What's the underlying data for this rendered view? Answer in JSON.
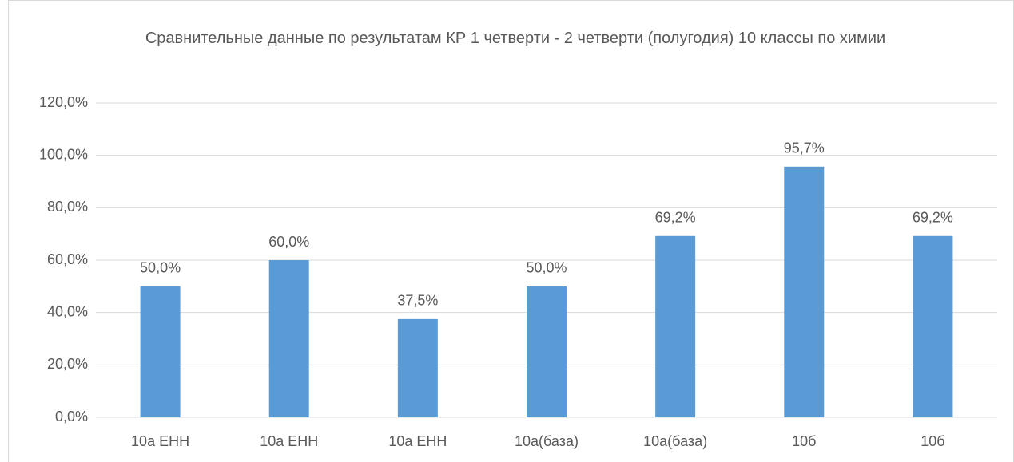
{
  "chart_data": {
    "type": "bar",
    "title": "Сравнительные данные по результатам КР 1 четверти - 2 четверти (полугодия) 10 классы по химии",
    "categories": [
      "10а ЕНН",
      "10а ЕНН",
      "10а ЕНН",
      "10а(база)",
      "10а(база)",
      "10б",
      "10б"
    ],
    "values": [
      50,
      60,
      37.5,
      50,
      69.2,
      95.7,
      69.2
    ],
    "value_labels": [
      "50,0%",
      "60,0%",
      "37,5%",
      "50,0%",
      "69,2%",
      "95,7%",
      "69,2%"
    ],
    "color": "#5b9bd5",
    "ylim": [
      0,
      120
    ],
    "yticks": [
      {
        "value": 0,
        "label": "0,0%"
      },
      {
        "value": 20,
        "label": "20,0%"
      },
      {
        "value": 40,
        "label": "40,0%"
      },
      {
        "value": 60,
        "label": "60,0%"
      },
      {
        "value": 80,
        "label": "80,0%"
      },
      {
        "value": 100,
        "label": "100,0%"
      },
      {
        "value": 120,
        "label": "120,0%"
      }
    ],
    "grid": true
  }
}
